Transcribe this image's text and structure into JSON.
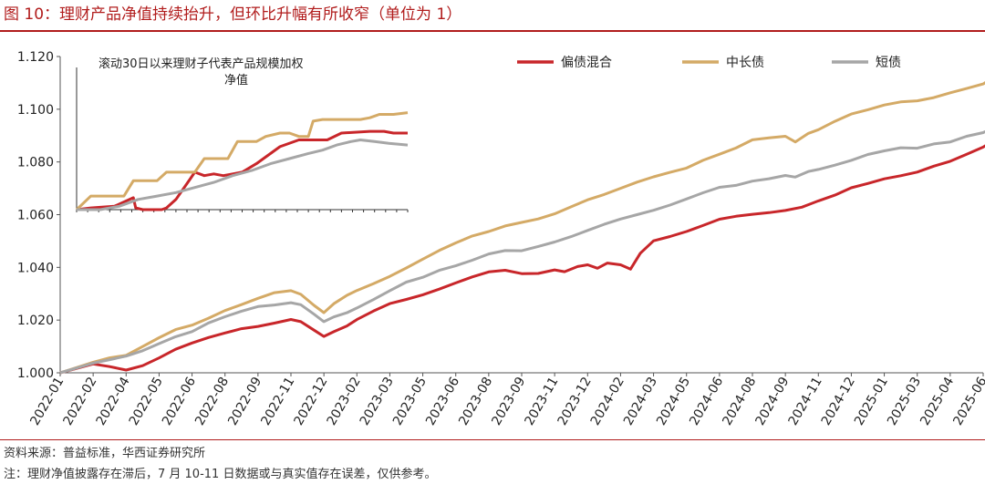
{
  "title": "图 10：理财产品净值持续抬升，但环比升幅有所收窄（单位为 1）",
  "footer": {
    "source": "资料来源：普益标准，华西证券研究所",
    "note": "注：理财净值披露存在滞后，7 月 10-11 日数据或与真实值存在误差，仅供参考。"
  },
  "chart_data": [
    {
      "type": "line",
      "title": "",
      "xlabel": "",
      "ylabel": "",
      "ylim": [
        1.0,
        1.12
      ],
      "yticks": [
        "1.000",
        "1.020",
        "1.040",
        "1.060",
        "1.080",
        "1.100",
        "1.120"
      ],
      "categories": [
        "2022-01",
        "2022-02",
        "2022-04",
        "2022-05",
        "2022-06",
        "2022-08",
        "2022-09",
        "2022-11",
        "2022-12",
        "2023-02",
        "2023-03",
        "2023-05",
        "2023-06",
        "2023-08",
        "2023-09",
        "2023-11",
        "2023-12",
        "2024-02",
        "2024-03",
        "2024-05",
        "2024-06",
        "2024-08",
        "2024-09",
        "2024-11",
        "2024-12",
        "2025-01",
        "2025-03",
        "2025-04",
        "2025-06"
      ],
      "legend_position": "top-right",
      "series": [
        {
          "name": "偏债混合",
          "color": "#c8262a",
          "points": [
            [
              0,
              1.0
            ],
            [
              1,
              1.003
            ],
            [
              1.5,
              1.002
            ],
            [
              2,
              1.001
            ],
            [
              2.5,
              1.003
            ],
            [
              3,
              1.006
            ],
            [
              3.5,
              1.009
            ],
            [
              4,
              1.011
            ],
            [
              4.5,
              1.013
            ],
            [
              5,
              1.015
            ],
            [
              5.5,
              1.017
            ],
            [
              6,
              1.018
            ],
            [
              6.5,
              1.019
            ],
            [
              7,
              1.02
            ],
            [
              7.3,
              1.019
            ],
            [
              7.7,
              1.016
            ],
            [
              8,
              1.014
            ],
            [
              8.3,
              1.016
            ],
            [
              8.7,
              1.018
            ],
            [
              9,
              1.02
            ],
            [
              9.5,
              1.023
            ],
            [
              10,
              1.026
            ],
            [
              10.5,
              1.028
            ],
            [
              11,
              1.03
            ],
            [
              11.5,
              1.032
            ],
            [
              12,
              1.034
            ],
            [
              12.5,
              1.036
            ],
            [
              13,
              1.038
            ],
            [
              13.5,
              1.039
            ],
            [
              14,
              1.038
            ],
            [
              14.5,
              1.038
            ],
            [
              15,
              1.039
            ],
            [
              15.3,
              1.038
            ],
            [
              15.7,
              1.04
            ],
            [
              16,
              1.041
            ],
            [
              16.3,
              1.04
            ],
            [
              16.6,
              1.042
            ],
            [
              17,
              1.041
            ],
            [
              17.3,
              1.039
            ],
            [
              17.6,
              1.045
            ],
            [
              18,
              1.05
            ],
            [
              18.5,
              1.052
            ],
            [
              19,
              1.054
            ],
            [
              19.5,
              1.056
            ],
            [
              20,
              1.058
            ],
            [
              20.5,
              1.059
            ],
            [
              21,
              1.06
            ],
            [
              21.5,
              1.061
            ],
            [
              22,
              1.062
            ],
            [
              22.5,
              1.063
            ],
            [
              23,
              1.065
            ],
            [
              23.5,
              1.067
            ],
            [
              24,
              1.07
            ],
            [
              24.5,
              1.072
            ],
            [
              25,
              1.074
            ],
            [
              25.5,
              1.075
            ],
            [
              26,
              1.076
            ],
            [
              26.5,
              1.078
            ],
            [
              27,
              1.08
            ],
            [
              27.5,
              1.083
            ],
            [
              28,
              1.086
            ],
            [
              28.3,
              1.088
            ]
          ]
        },
        {
          "name": "中长债",
          "color": "#d4aa66",
          "points": [
            [
              0,
              1.0
            ],
            [
              1,
              1.004
            ],
            [
              1.5,
              1.006
            ],
            [
              2,
              1.007
            ],
            [
              2.5,
              1.01
            ],
            [
              3,
              1.013
            ],
            [
              3.5,
              1.016
            ],
            [
              4,
              1.018
            ],
            [
              4.5,
              1.021
            ],
            [
              5,
              1.024
            ],
            [
              5.5,
              1.026
            ],
            [
              6,
              1.028
            ],
            [
              6.5,
              1.03
            ],
            [
              7,
              1.031
            ],
            [
              7.3,
              1.03
            ],
            [
              7.7,
              1.026
            ],
            [
              8,
              1.023
            ],
            [
              8.3,
              1.026
            ],
            [
              8.7,
              1.029
            ],
            [
              9,
              1.031
            ],
            [
              9.5,
              1.034
            ],
            [
              10,
              1.037
            ],
            [
              10.5,
              1.04
            ],
            [
              11,
              1.043
            ],
            [
              11.5,
              1.046
            ],
            [
              12,
              1.049
            ],
            [
              12.5,
              1.052
            ],
            [
              13,
              1.054
            ],
            [
              13.5,
              1.056
            ],
            [
              14,
              1.057
            ],
            [
              14.5,
              1.058
            ],
            [
              15,
              1.06
            ],
            [
              15.5,
              1.063
            ],
            [
              16,
              1.066
            ],
            [
              16.5,
              1.068
            ],
            [
              17,
              1.07
            ],
            [
              17.5,
              1.072
            ],
            [
              18,
              1.074
            ],
            [
              18.5,
              1.076
            ],
            [
              19,
              1.078
            ],
            [
              19.5,
              1.081
            ],
            [
              20,
              1.083
            ],
            [
              20.5,
              1.085
            ],
            [
              21,
              1.088
            ],
            [
              21.5,
              1.089
            ],
            [
              22,
              1.09
            ],
            [
              22.3,
              1.088
            ],
            [
              22.7,
              1.091
            ],
            [
              23,
              1.092
            ],
            [
              23.5,
              1.095
            ],
            [
              24,
              1.098
            ],
            [
              24.5,
              1.1
            ],
            [
              25,
              1.102
            ],
            [
              25.5,
              1.103
            ],
            [
              26,
              1.103
            ],
            [
              26.5,
              1.104
            ],
            [
              27,
              1.106
            ],
            [
              27.5,
              1.108
            ],
            [
              28,
              1.11
            ],
            [
              28.3,
              1.112
            ]
          ]
        },
        {
          "name": "短债",
          "color": "#a6a6a6",
          "points": [
            [
              0,
              1.0
            ],
            [
              1,
              1.004
            ],
            [
              1.5,
              1.005
            ],
            [
              2,
              1.006
            ],
            [
              2.5,
              1.008
            ],
            [
              3,
              1.011
            ],
            [
              3.5,
              1.014
            ],
            [
              4,
              1.016
            ],
            [
              4.5,
              1.019
            ],
            [
              5,
              1.021
            ],
            [
              5.5,
              1.023
            ],
            [
              6,
              1.025
            ],
            [
              6.5,
              1.026
            ],
            [
              7,
              1.027
            ],
            [
              7.3,
              1.026
            ],
            [
              7.7,
              1.022
            ],
            [
              8,
              1.019
            ],
            [
              8.3,
              1.021
            ],
            [
              8.7,
              1.023
            ],
            [
              9,
              1.025
            ],
            [
              9.5,
              1.028
            ],
            [
              10,
              1.031
            ],
            [
              10.5,
              1.034
            ],
            [
              11,
              1.036
            ],
            [
              11.5,
              1.039
            ],
            [
              12,
              1.041
            ],
            [
              12.5,
              1.043
            ],
            [
              13,
              1.045
            ],
            [
              13.5,
              1.046
            ],
            [
              14,
              1.046
            ],
            [
              14.5,
              1.048
            ],
            [
              15,
              1.05
            ],
            [
              15.5,
              1.052
            ],
            [
              16,
              1.054
            ],
            [
              16.5,
              1.056
            ],
            [
              17,
              1.058
            ],
            [
              17.5,
              1.06
            ],
            [
              18,
              1.062
            ],
            [
              18.5,
              1.064
            ],
            [
              19,
              1.066
            ],
            [
              19.5,
              1.068
            ],
            [
              20,
              1.07
            ],
            [
              20.5,
              1.071
            ],
            [
              21,
              1.073
            ],
            [
              21.5,
              1.074
            ],
            [
              22,
              1.075
            ],
            [
              22.3,
              1.074
            ],
            [
              22.7,
              1.076
            ],
            [
              23,
              1.077
            ],
            [
              23.5,
              1.079
            ],
            [
              24,
              1.081
            ],
            [
              24.5,
              1.083
            ],
            [
              25,
              1.084
            ],
            [
              25.5,
              1.085
            ],
            [
              26,
              1.085
            ],
            [
              26.5,
              1.087
            ],
            [
              27,
              1.088
            ],
            [
              27.5,
              1.09
            ],
            [
              28,
              1.091
            ],
            [
              28.3,
              1.093
            ]
          ]
        }
      ]
    },
    {
      "type": "line",
      "title": "滚动30日以来理财子代表产品规模加权净值",
      "title_lines": [
        "滚动30日以来理财子代表产品规模加权",
        "净值"
      ],
      "n_ticks": 30,
      "series": [
        {
          "name": "偏债混合",
          "color": "#c8262a",
          "points": [
            [
              0,
              0
            ],
            [
              3,
              1
            ],
            [
              8,
              2
            ],
            [
              12,
              7
            ],
            [
              12.5,
              1
            ],
            [
              14,
              0
            ],
            [
              18,
              0
            ],
            [
              19,
              1
            ],
            [
              21,
              6
            ],
            [
              24,
              18
            ],
            [
              25,
              22
            ],
            [
              27,
              20
            ],
            [
              29,
              21
            ],
            [
              31,
              20
            ],
            [
              33,
              21
            ],
            [
              35,
              22
            ],
            [
              38,
              27
            ],
            [
              43,
              37
            ],
            [
              47,
              41
            ],
            [
              53,
              41
            ],
            [
              56,
              45
            ],
            [
              62,
              46
            ],
            [
              65,
              46
            ],
            [
              67,
              45
            ],
            [
              70,
              45
            ]
          ]
        },
        {
          "name": "中长债",
          "color": "#d4aa66",
          "points": [
            [
              0,
              0
            ],
            [
              3,
              8
            ],
            [
              6,
              8
            ],
            [
              10,
              8
            ],
            [
              12,
              17
            ],
            [
              15,
              17
            ],
            [
              17,
              17
            ],
            [
              19,
              22
            ],
            [
              21,
              22
            ],
            [
              25,
              22
            ],
            [
              27,
              30
            ],
            [
              29,
              30
            ],
            [
              32,
              30
            ],
            [
              34,
              40
            ],
            [
              36,
              40
            ],
            [
              38,
              40
            ],
            [
              40,
              43
            ],
            [
              43,
              45
            ],
            [
              45,
              45
            ],
            [
              47,
              43
            ],
            [
              49,
              43
            ],
            [
              50,
              52
            ],
            [
              52,
              53
            ],
            [
              56,
              53
            ],
            [
              60,
              53
            ],
            [
              62,
              54
            ],
            [
              64,
              56
            ],
            [
              67,
              56
            ],
            [
              70,
              57
            ]
          ]
        },
        {
          "name": "短债",
          "color": "#a6a6a6",
          "points": [
            [
              0,
              0
            ],
            [
              5,
              0
            ],
            [
              9,
              2
            ],
            [
              13,
              6
            ],
            [
              17,
              8
            ],
            [
              21,
              10
            ],
            [
              25,
              13
            ],
            [
              29,
              16
            ],
            [
              33,
              20
            ],
            [
              37,
              23
            ],
            [
              41,
              27
            ],
            [
              45,
              30
            ],
            [
              49,
              33
            ],
            [
              52,
              35
            ],
            [
              55,
              38
            ],
            [
              58,
              40
            ],
            [
              60,
              41
            ],
            [
              63,
              40
            ],
            [
              66,
              39
            ],
            [
              70,
              38
            ]
          ]
        }
      ]
    }
  ]
}
